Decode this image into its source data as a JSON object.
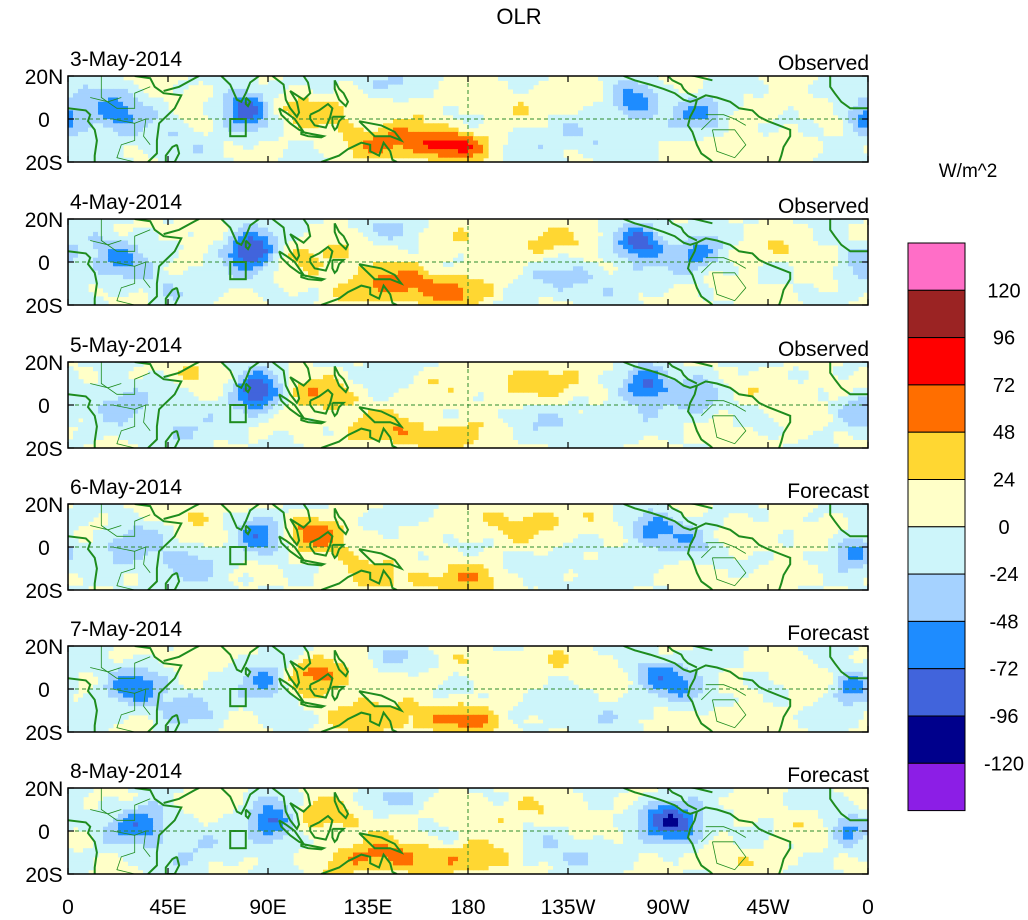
{
  "chart_data": {
    "type": "heatmap",
    "title": "OLR",
    "variable": "OLR",
    "units_label": "W/m^2",
    "x_ticks": [
      "0",
      "45E",
      "90E",
      "135E",
      "180",
      "135W",
      "90W",
      "45W",
      "0"
    ],
    "y_ticks": [
      "20N",
      "0",
      "20S"
    ],
    "x_range_deg": [
      0,
      360
    ],
    "y_range_deg": [
      -20,
      20
    ],
    "panels": [
      {
        "date": "3-May-2014",
        "kind": "Observed"
      },
      {
        "date": "4-May-2014",
        "kind": "Observed"
      },
      {
        "date": "5-May-2014",
        "kind": "Observed"
      },
      {
        "date": "6-May-2014",
        "kind": "Forecast"
      },
      {
        "date": "7-May-2014",
        "kind": "Forecast"
      },
      {
        "date": "8-May-2014",
        "kind": "Forecast"
      }
    ],
    "colorbar": {
      "labels": [
        "120",
        "96",
        "72",
        "48",
        "24",
        "0",
        "-24",
        "-48",
        "-72",
        "-96",
        "-120"
      ],
      "colors_top_to_bottom": [
        "#ff6ec7",
        "#9b2323",
        "#ff0000",
        "#ff6e00",
        "#ffd732",
        "#ffffc8",
        "#cdf5fa",
        "#a5d2ff",
        "#1e8cff",
        "#4164dc",
        "#00008c",
        "#8c1ee6"
      ]
    },
    "reference_lines": {
      "equator": true,
      "dateline": true,
      "style": "dashed",
      "color": "#2e8b2e"
    },
    "coastline_color": "#1e8c1e"
  }
}
